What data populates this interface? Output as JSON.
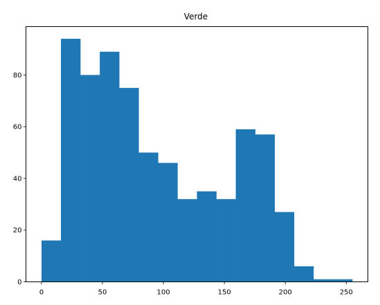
{
  "chart_data": {
    "type": "bar",
    "title": "Verde",
    "xlabel": "",
    "ylabel": "",
    "bin_edges": [
      0,
      15.94,
      31.88,
      47.81,
      63.75,
      79.69,
      95.63,
      111.56,
      127.5,
      143.44,
      159.38,
      175.31,
      191.25,
      207.19,
      223.13,
      239.06,
      255
    ],
    "values": [
      16,
      94,
      80,
      89,
      75,
      50,
      46,
      32,
      35,
      32,
      59,
      57,
      27,
      6,
      1,
      1
    ],
    "xlim": [
      -12.75,
      267.75
    ],
    "ylim": [
      0,
      98.7
    ],
    "xticks": [
      0,
      50,
      100,
      150,
      200,
      250
    ],
    "yticks": [
      0,
      20,
      40,
      60,
      80
    ],
    "bar_color": "#1f77b4",
    "grid": false,
    "legend": "none"
  }
}
